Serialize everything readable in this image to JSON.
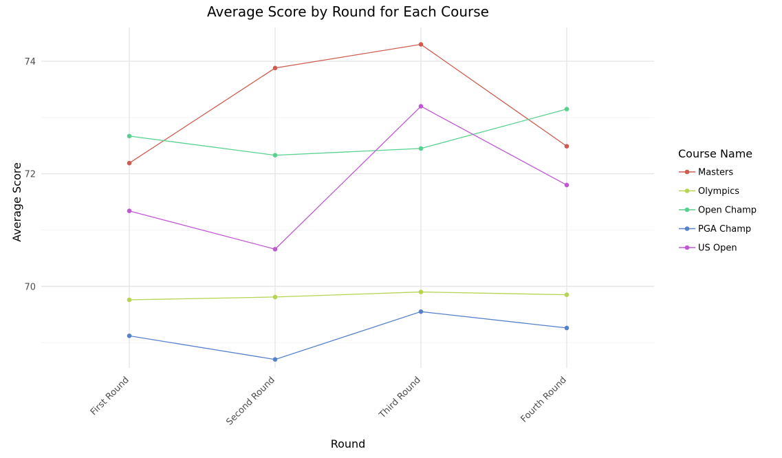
{
  "chart_data": {
    "type": "line",
    "title": "Average Score by Round for Each Course",
    "xlabel": "Round",
    "ylabel": "Average Score",
    "categories": [
      "First Round",
      "Second Round",
      "Third Round",
      "Fourth Round"
    ],
    "y_ticks": [
      70,
      72,
      74
    ],
    "ylim": [
      68.55,
      74.6
    ],
    "grid": true,
    "legend": {
      "title": "Course Name",
      "placement": "right"
    },
    "series": [
      {
        "name": "Masters",
        "color": "#CD5C4E",
        "values": [
          72.19,
          73.88,
          74.3,
          72.49
        ]
      },
      {
        "name": "Olympics",
        "color": "#B5D451",
        "values": [
          69.76,
          69.81,
          69.9,
          69.85
        ]
      },
      {
        "name": "Open Champ",
        "color": "#58D18E",
        "values": [
          72.67,
          72.33,
          72.45,
          73.15
        ]
      },
      {
        "name": "PGA Champ",
        "color": "#5480CC",
        "values": [
          69.12,
          68.7,
          69.55,
          69.26
        ]
      },
      {
        "name": "US Open",
        "color": "#C058D4",
        "values": [
          71.34,
          70.66,
          73.2,
          71.8
        ]
      }
    ]
  }
}
